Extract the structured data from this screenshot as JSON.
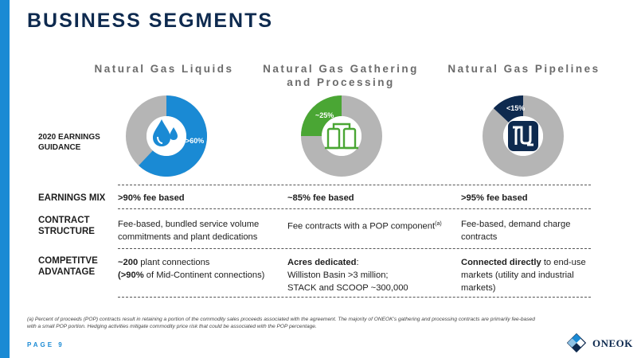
{
  "title": "BUSINESS SEGMENTS",
  "segments": [
    {
      "name": "Natural Gas Liquids",
      "pct_label": ">60%",
      "share": 0.62,
      "color": "#1a8ad4"
    },
    {
      "name_line1": "Natural Gas Gathering",
      "name_line2": "and Processing",
      "pct_label": "~25%",
      "share": 0.25,
      "color": "#4aa634"
    },
    {
      "name": "Natural Gas Pipelines",
      "pct_label": "<15%",
      "share": 0.13,
      "color": "#0e2a4f"
    }
  ],
  "guidance_label_line1": "2020 EARNINGS",
  "guidance_label_line2": "GUIDANCE",
  "rows": {
    "earnings_mix": {
      "label": "EARNINGS MIX",
      "cells": [
        ">90% fee based",
        "~85% fee based",
        ">95% fee based"
      ]
    },
    "contract_structure": {
      "label_line1": "CONTRACT",
      "label_line2": "STRUCTURE",
      "ngl_line1": "Fee-based, bundled service volume",
      "ngl_line2": "commitments and plant dedications",
      "gp": "Fee contracts with a POP component",
      "gp_sup": "(a)",
      "pipe_line1": "Fee-based, demand charge",
      "pipe_line2": "contracts"
    },
    "competitive_advantage": {
      "label_line1": "COMPETITVE",
      "label_line2": "ADVANTAGE",
      "ngl_bold": "~200",
      "ngl_rest": " plant connections",
      "ngl_bold2": "(>90%",
      "ngl_rest2": " of Mid-Continent connections)",
      "gp_bold": "Acres dedicated",
      "gp_colon": ":",
      "gp_line2": "Williston Basin >3 million;",
      "gp_line3": "STACK and SCOOP ~300,000",
      "pipe_bold": "Connected directly",
      "pipe_rest": " to end-use",
      "pipe_line2": "markets (utility and industrial",
      "pipe_line3": "markets)"
    }
  },
  "footnote_line1": "(a) Percent of proceeds (POP) contracts result in retaining a portion of the commodity sales proceeds associated with the agreement. The majority of ONEOK's gathering and processing contracts are primarily fee-based",
  "footnote_line2": "with a small POP portion. Hedging activities mitigate commodity price risk that could be associated with the POP percentage.",
  "page_label": "PAGE 9",
  "logo_text": "ONEOK",
  "colors": {
    "accent": "#1a8ad4",
    "navy": "#0e2a4f",
    "green": "#4aa634",
    "gray": "#b5b5b5"
  }
}
